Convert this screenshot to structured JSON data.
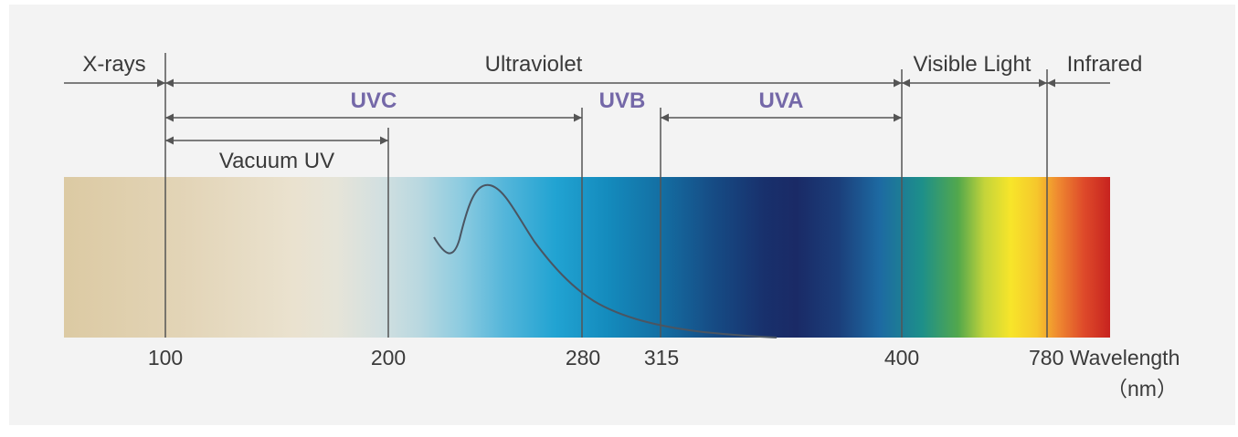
{
  "bands": {
    "xrays": "X-rays",
    "ultraviolet": "Ultraviolet",
    "visible": "Visible Light",
    "infrared": "Infrared",
    "vacuum_uv": "Vacuum UV"
  },
  "uv_bands": {
    "uvc": "UVC",
    "uvb": "UVB",
    "uva": "UVA"
  },
  "ticks": {
    "t100": "100",
    "t200": "200",
    "t280": "280",
    "t315": "315",
    "t400": "400",
    "t780": "780 Wavelength",
    "unit": "（nm）"
  },
  "colors": {
    "uv_label": "#7468a8",
    "text": "#3a3a3a",
    "line": "#555555",
    "panel": "#f3f3f3"
  }
}
